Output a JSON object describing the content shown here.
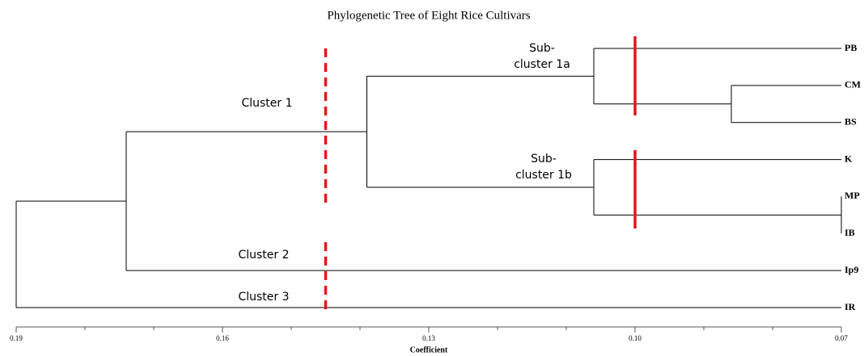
{
  "chart_data": {
    "type": "dendrogram",
    "title": "Phylogenetic Tree of Eight Rice Cultivars",
    "xlabel": "Coefficient",
    "xlim": [
      0.19,
      0.07
    ],
    "xticks": [
      0.19,
      0.16,
      0.13,
      {
        "value": 0.1,
        "label": "0.10"
      },
      0.07
    ],
    "xminorticks": [
      0.18,
      0.17,
      0.15,
      0.14,
      0.12,
      0.11,
      0.09,
      0.08
    ],
    "color": "#000000",
    "tree": {
      "height": 0.19,
      "children": [
        {
          "height": 0.174,
          "children": [
            {
              "height": 0.139,
              "children": [
                {
                  "height": 0.106,
                  "children": [
                    {
                      "name": "PB"
                    },
                    {
                      "height": 0.086,
                      "children": [
                        {
                          "name": "CM"
                        },
                        {
                          "name": "BS"
                        }
                      ]
                    }
                  ]
                },
                {
                  "height": 0.106,
                  "children": [
                    {
                      "name": "K"
                    },
                    {
                      "height": 0.07,
                      "children": [
                        {
                          "name": "MP"
                        },
                        {
                          "name": "IB"
                        }
                      ]
                    }
                  ]
                }
              ]
            },
            {
              "name": "Ip9"
            }
          ]
        },
        {
          "name": "IR"
        }
      ]
    },
    "cut_lines": [
      {
        "value": 0.145,
        "style": "dashed",
        "color": "#e8141b"
      },
      {
        "value": 0.1,
        "style": "solid",
        "color": "#e8141b"
      }
    ],
    "annotations": [
      "Cluster 1",
      "Sub-",
      "cluster 1a",
      "Sub-",
      "cluster 1b",
      "Cluster 2",
      "Cluster 3"
    ]
  }
}
